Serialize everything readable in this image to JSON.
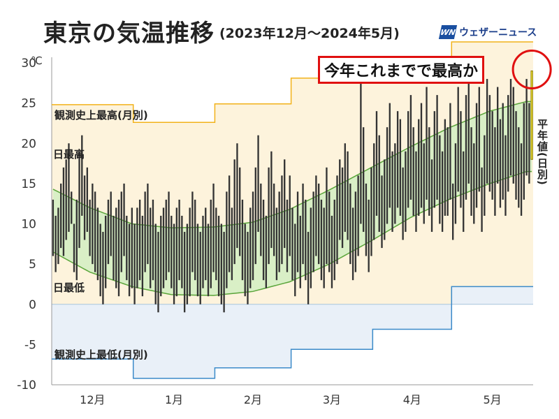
{
  "header": {
    "title": "東京の気温推移",
    "subtitle": "(2023年12月〜2024年5月)",
    "brand": "ウェザーニュース",
    "brand_mark": "WN",
    "callout": "今年これまでで最高か",
    "unit": "℃"
  },
  "colors": {
    "bars": "#333333",
    "highlight_bar": "#f5e83a",
    "record_high_line": "#f2b21a",
    "record_high_fill": "#fdf3dc",
    "record_low_line": "#3b8ac9",
    "record_low_fill": "#e9f0f8",
    "normal_fill": "#d9efc6",
    "normal_line": "#5aa53a",
    "circle": "#e01010"
  },
  "chart_data": {
    "type": "bar",
    "description_series": [
      "daily temperature range (floating bars)"
    ],
    "ylim": [
      -10,
      30
    ],
    "yticks": [
      -10,
      -5,
      0,
      5,
      10,
      15,
      20,
      25,
      30
    ],
    "month_labels": [
      "12月",
      "1月",
      "2月",
      "3月",
      "4月",
      "5月"
    ],
    "annotations": {
      "record_high": "観測史上最高(月別)",
      "daily_high": "日最高",
      "daily_low": "日最低",
      "record_low": "観測史上最低(月別)",
      "normal": "平年値(日別)"
    },
    "record_high_by_month": [
      24.8,
      22.6,
      24.9,
      28.1,
      29.2,
      32.6
    ],
    "record_low_by_month": [
      -6.8,
      -9.2,
      -7.9,
      -5.6,
      -3.1,
      2.2
    ],
    "normal_high_anchors": [
      [
        1,
        14.3
      ],
      [
        15,
        12.0
      ],
      [
        31,
        10.0
      ],
      [
        46,
        9.5
      ],
      [
        62,
        9.6
      ],
      [
        77,
        10.2
      ],
      [
        91,
        11.8
      ],
      [
        106,
        14.2
      ],
      [
        122,
        17.0
      ],
      [
        137,
        19.6
      ],
      [
        152,
        22.0
      ],
      [
        167,
        24.0
      ],
      [
        181,
        25.2
      ]
    ],
    "normal_low_anchors": [
      [
        1,
        6.5
      ],
      [
        15,
        4.0
      ],
      [
        31,
        2.2
      ],
      [
        46,
        1.2
      ],
      [
        62,
        1.1
      ],
      [
        77,
        1.6
      ],
      [
        91,
        2.8
      ],
      [
        106,
        5.0
      ],
      [
        122,
        7.9
      ],
      [
        137,
        10.8
      ],
      [
        152,
        13.1
      ],
      [
        167,
        15.0
      ],
      [
        181,
        16.5
      ]
    ],
    "daily_highs": [
      13,
      11,
      12,
      15,
      17,
      18,
      20,
      14,
      10,
      13,
      19,
      21,
      16,
      17,
      13,
      15,
      14,
      12,
      10,
      9,
      11,
      13,
      14,
      11,
      12,
      13,
      14,
      15,
      11,
      10,
      12,
      10,
      12,
      13,
      11,
      14,
      15,
      12,
      13,
      10,
      9,
      11,
      12,
      13,
      14,
      11,
      10,
      12,
      13,
      11,
      9,
      10,
      12,
      14,
      13,
      10,
      9,
      11,
      12,
      10,
      13,
      15,
      12,
      11,
      10,
      9,
      14,
      16,
      12,
      18,
      20,
      17,
      13,
      10,
      9,
      12,
      14,
      17,
      21,
      15,
      13,
      11,
      17,
      19,
      15,
      12,
      14,
      16,
      18,
      13,
      16,
      12,
      10,
      14,
      11,
      15,
      13,
      9,
      12,
      14,
      16,
      15,
      13,
      12,
      17,
      14,
      11,
      13,
      16,
      18,
      17,
      20,
      19,
      15,
      12,
      14,
      16,
      28,
      22,
      15,
      13,
      17,
      20,
      24,
      21,
      16,
      18,
      22,
      25,
      19,
      20,
      24,
      23,
      17,
      19,
      24,
      26,
      22,
      19,
      23,
      25,
      20,
      27,
      22,
      18,
      24,
      26,
      21,
      19,
      23,
      22,
      25,
      15,
      20,
      27,
      24,
      19,
      26,
      28,
      22,
      20,
      25,
      27,
      17,
      21,
      28,
      26,
      24,
      22,
      27,
      23,
      25,
      21,
      26,
      28,
      27,
      24,
      22,
      20,
      25,
      28,
      25,
      29
    ],
    "daily_lows": [
      6,
      4,
      5,
      7,
      6,
      8,
      9,
      10,
      4,
      3,
      7,
      11,
      8,
      9,
      6,
      5,
      4,
      3,
      1,
      0,
      2,
      5,
      6,
      3,
      2,
      1,
      4,
      6,
      3,
      1,
      2,
      0,
      2,
      3,
      1,
      4,
      5,
      2,
      3,
      0,
      -1,
      1,
      2,
      3,
      4,
      2,
      0,
      1,
      3,
      2,
      -1,
      0,
      1,
      4,
      3,
      1,
      0,
      2,
      3,
      1,
      2,
      4,
      3,
      1,
      0,
      -1,
      2,
      4,
      3,
      5,
      7,
      6,
      3,
      1,
      0,
      2,
      3,
      5,
      9,
      6,
      3,
      2,
      5,
      7,
      6,
      3,
      4,
      5,
      7,
      4,
      6,
      3,
      1,
      4,
      2,
      5,
      3,
      0,
      2,
      4,
      6,
      5,
      3,
      2,
      5,
      4,
      2,
      3,
      5,
      8,
      7,
      9,
      8,
      5,
      3,
      4,
      6,
      10,
      9,
      6,
      4,
      6,
      8,
      11,
      9,
      7,
      8,
      10,
      12,
      9,
      10,
      12,
      11,
      8,
      9,
      12,
      13,
      11,
      9,
      11,
      12,
      10,
      13,
      11,
      9,
      12,
      13,
      10,
      9,
      11,
      11,
      13,
      8,
      10,
      14,
      12,
      9,
      13,
      15,
      11,
      10,
      12,
      14,
      9,
      11,
      15,
      14,
      13,
      11,
      15,
      12,
      13,
      11,
      14,
      16,
      15,
      13,
      12,
      11,
      13,
      16,
      15,
      18
    ]
  }
}
